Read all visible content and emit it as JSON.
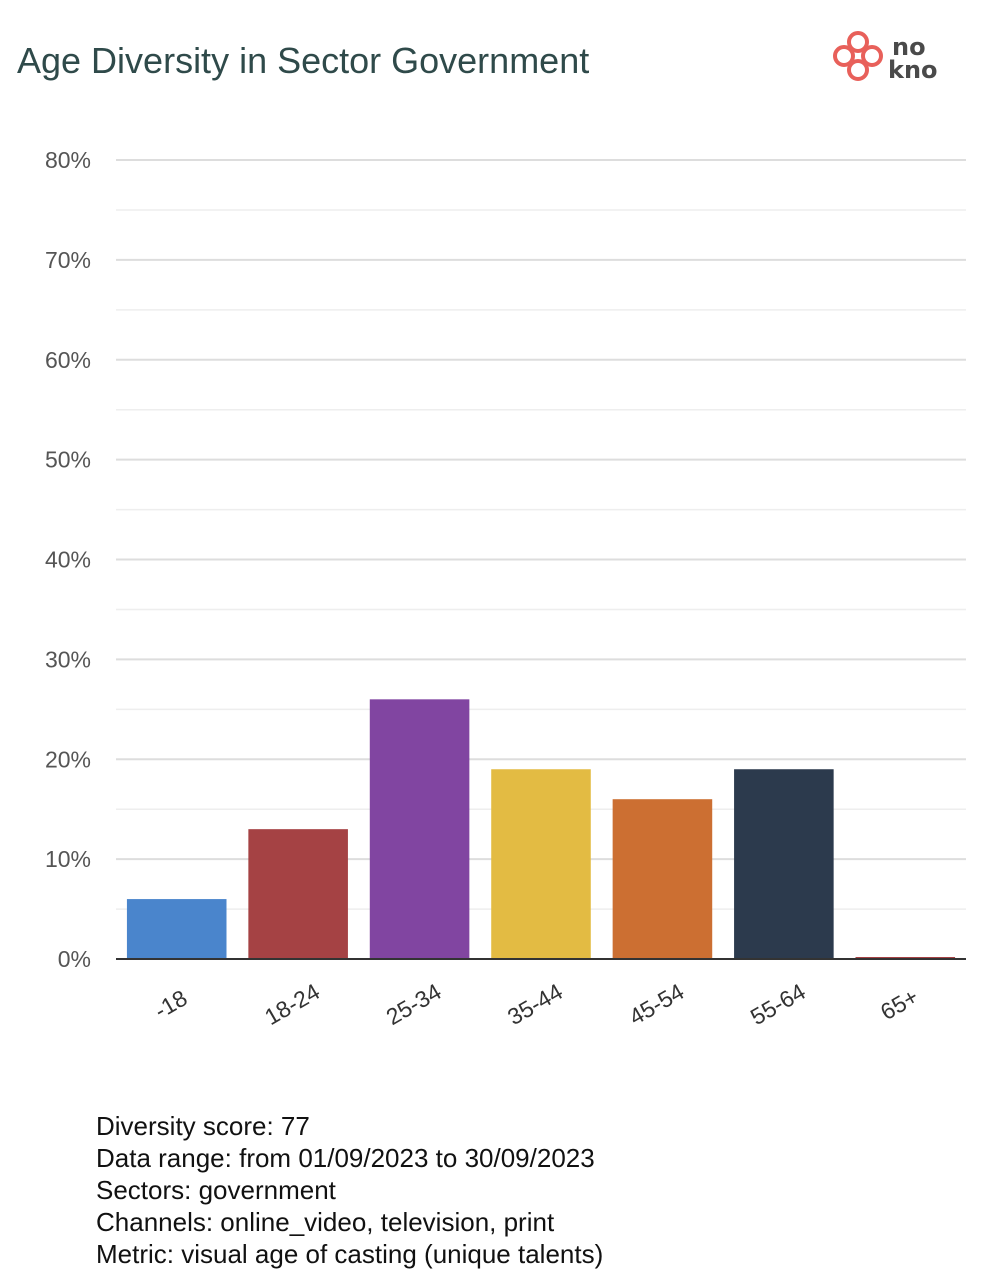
{
  "header": {
    "title": "Age Diversity in Sector Government",
    "logo": {
      "name": "nokno-logo",
      "line1": "no",
      "line2": "kno",
      "color": "#e8605a"
    }
  },
  "chart_data": {
    "type": "bar",
    "title": "Age Diversity in Sector Government",
    "xlabel": "",
    "ylabel": "",
    "categories": [
      "-18",
      "18-24",
      "25-34",
      "35-44",
      "45-54",
      "55-64",
      "65+"
    ],
    "values": [
      6,
      13,
      26,
      19,
      16,
      19,
      0.2
    ],
    "colors": [
      "#4a85cc",
      "#a54244",
      "#8145a1",
      "#e3bb43",
      "#cc6f32",
      "#2c3a4d",
      "#a54244"
    ],
    "ylim": [
      0,
      80
    ],
    "yticks": [
      0,
      10,
      20,
      30,
      40,
      50,
      60,
      70,
      80
    ],
    "ytick_labels": [
      "0%",
      "10%",
      "20%",
      "30%",
      "40%",
      "50%",
      "60%",
      "70%",
      "80%"
    ],
    "grid": true,
    "minor_grid": true,
    "legend": "none"
  },
  "footer": {
    "lines": [
      "Diversity score: 77",
      "Data range: from 01/09/2023 to 30/09/2023",
      "Sectors: government",
      "Channels: online_video, television, print",
      "Metric: visual age of casting (unique talents)"
    ]
  }
}
